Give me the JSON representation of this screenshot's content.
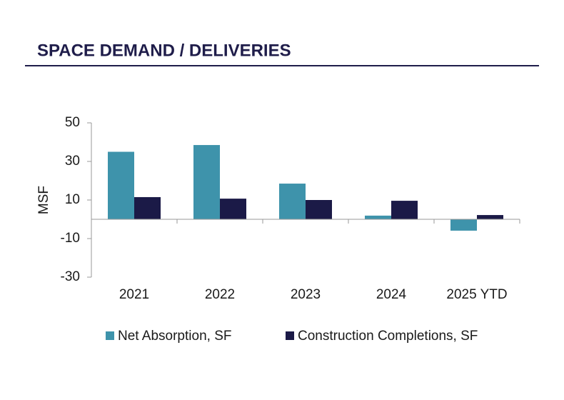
{
  "chart_data": {
    "type": "bar",
    "title": "SPACE DEMAND / DELIVERIES",
    "y_label": "MSF",
    "categories": [
      "2021",
      "2022",
      "2023",
      "2024",
      "2025 YTD"
    ],
    "series": [
      {
        "name": "Net Absorption, SF",
        "color": "#3e93ab",
        "values": [
          35,
          38.5,
          18.5,
          1.9,
          -5.9
        ]
      },
      {
        "name": "Construction Completions, SF",
        "color": "#1b1a47",
        "values": [
          11.5,
          10.7,
          10,
          9.6,
          2.2
        ]
      }
    ],
    "ylim": [
      -30,
      50
    ],
    "yticks": [
      50,
      30,
      10,
      -10,
      -30
    ],
    "grid": false,
    "legend": "bottom"
  }
}
